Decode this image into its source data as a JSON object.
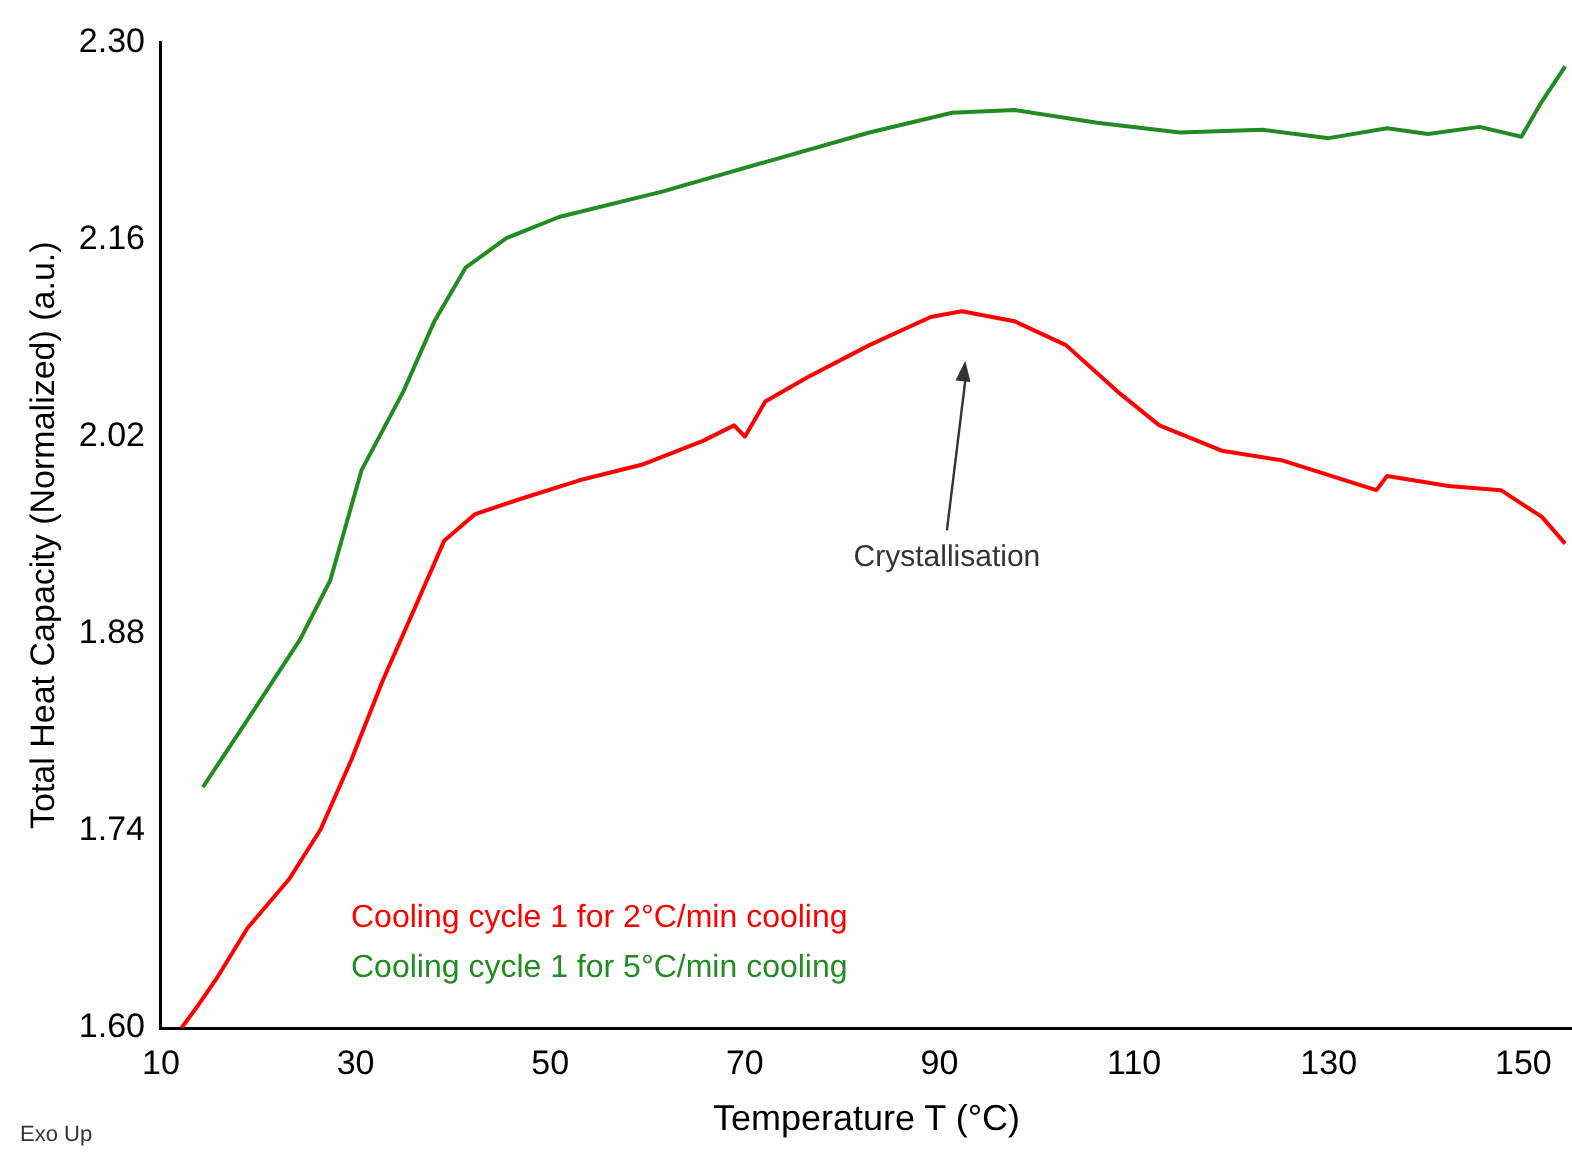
{
  "chart_data": {
    "type": "line",
    "xlabel": "Temperature T (°C)",
    "ylabel": "Total Heat Capacity (Normalized) (a.u.)",
    "xlim": [
      10,
      155
    ],
    "xticks": [
      10,
      30,
      50,
      70,
      90,
      110,
      130,
      150
    ],
    "ylim": [
      1.6,
      2.3
    ],
    "yticks": [
      {
        "value": 1.6,
        "label": "1.60"
      },
      1.74,
      1.88,
      2.02,
      2.16,
      {
        "value": 2.3,
        "label": "2.30"
      }
    ],
    "grid": false,
    "legend": "bottom left",
    "marker": "none",
    "line_style": "solid",
    "series": [
      {
        "name": "Cooling cycle 1 for 2°C/min cooling",
        "color": "#ff0000",
        "x": [
          12.1,
          13.6,
          15.7,
          18.9,
          23.2,
          26.4,
          29.6,
          32.8,
          36,
          39.1,
          42.3,
          46.6,
          53,
          59.4,
          65.7,
          68.9,
          70,
          72.1,
          76.4,
          82.8,
          89.1,
          92.3,
          97.7,
          103,
          108.3,
          112.6,
          119,
          125.3,
          131.7,
          134.9,
          136,
          142.3,
          147.7,
          151.9,
          154.3
        ],
        "values": [
          1.6,
          1.614,
          1.635,
          1.671,
          1.706,
          1.741,
          1.791,
          1.847,
          1.897,
          1.946,
          1.965,
          1.975,
          1.989,
          2.0,
          2.017,
          2.028,
          2.02,
          2.045,
          2.062,
          2.085,
          2.105,
          2.109,
          2.102,
          2.085,
          2.052,
          2.028,
          2.01,
          2.003,
          1.989,
          1.982,
          1.992,
          1.985,
          1.982,
          1.963,
          1.944
        ]
      },
      {
        "name": "Cooling cycle 1 for 5°C/min cooling",
        "color": "#228b22",
        "x": [
          14.3,
          18.9,
          24.3,
          27.4,
          30.6,
          34.9,
          38.1,
          41.3,
          45.5,
          50.9,
          61.5,
          72.1,
          82.8,
          91.3,
          97.7,
          106.2,
          114.7,
          123.2,
          130,
          136,
          140.2,
          145.5,
          149.8,
          151.9,
          154.3
        ],
        "values": [
          1.771,
          1.819,
          1.876,
          1.918,
          1.996,
          2.052,
          2.102,
          2.14,
          2.161,
          2.176,
          2.194,
          2.215,
          2.236,
          2.25,
          2.252,
          2.243,
          2.236,
          2.238,
          2.232,
          2.239,
          2.235,
          2.24,
          2.233,
          2.258,
          2.283
        ]
      }
    ],
    "annotations": [
      "Crystallisation",
      "Exo Up"
    ]
  }
}
